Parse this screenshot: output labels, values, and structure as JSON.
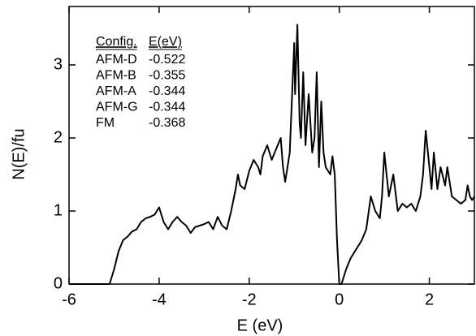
{
  "chart_data": {
    "type": "line",
    "xlabel": "E (eV)",
    "ylabel": "N(E)/fu",
    "x": [
      -6,
      -5.1,
      -5.0,
      -4.9,
      -4.8,
      -4.7,
      -4.6,
      -4.5,
      -4.4,
      -4.3,
      -4.2,
      -4.1,
      -4.0,
      -3.9,
      -3.8,
      -3.7,
      -3.6,
      -3.5,
      -3.4,
      -3.3,
      -3.2,
      -3.1,
      -3.0,
      -2.9,
      -2.8,
      -2.7,
      -2.6,
      -2.5,
      -2.4,
      -2.3,
      -2.25,
      -2.2,
      -2.1,
      -2.0,
      -1.9,
      -1.8,
      -1.75,
      -1.7,
      -1.6,
      -1.5,
      -1.4,
      -1.3,
      -1.25,
      -1.2,
      -1.1,
      -1.02,
      -1.0,
      -0.98,
      -0.93,
      -0.88,
      -0.85,
      -0.8,
      -0.75,
      -0.68,
      -0.6,
      -0.55,
      -0.5,
      -0.45,
      -0.4,
      -0.35,
      -0.3,
      -0.2,
      -0.15,
      -0.1,
      -0.05,
      0.0,
      0.05,
      0.15,
      0.25,
      0.4,
      0.5,
      0.6,
      0.7,
      0.8,
      0.9,
      0.95,
      1.0,
      1.05,
      1.1,
      1.2,
      1.3,
      1.4,
      1.5,
      1.6,
      1.7,
      1.8,
      1.86,
      1.92,
      2.0,
      2.05,
      2.1,
      2.18,
      2.25,
      2.35,
      2.4,
      2.5,
      2.6,
      2.7,
      2.8,
      2.85,
      2.9,
      2.95,
      3.0
    ],
    "values": [
      0,
      0,
      0.2,
      0.45,
      0.6,
      0.65,
      0.72,
      0.75,
      0.85,
      0.9,
      0.92,
      0.95,
      1.05,
      0.85,
      0.75,
      0.85,
      0.92,
      0.85,
      0.8,
      0.7,
      0.78,
      0.8,
      0.82,
      0.85,
      0.75,
      0.92,
      0.8,
      0.75,
      1.0,
      1.3,
      1.5,
      1.35,
      1.3,
      1.55,
      1.7,
      1.6,
      1.5,
      1.75,
      1.9,
      1.7,
      1.85,
      2.0,
      1.6,
      1.4,
      1.8,
      3.0,
      3.3,
      2.6,
      3.55,
      2.2,
      2.0,
      2.9,
      1.9,
      2.6,
      1.8,
      2.0,
      2.9,
      1.6,
      2.5,
      1.8,
      1.6,
      1.5,
      1.75,
      1.5,
      0.6,
      0.0,
      0.0,
      0.2,
      0.35,
      0.5,
      0.6,
      0.75,
      1.2,
      1.0,
      0.9,
      1.2,
      1.8,
      1.5,
      1.2,
      1.5,
      1.0,
      1.1,
      1.05,
      1.1,
      1.0,
      1.2,
      1.5,
      2.1,
      1.6,
      1.3,
      1.8,
      1.3,
      1.6,
      1.35,
      1.6,
      1.2,
      1.15,
      1.1,
      1.15,
      1.35,
      1.2,
      1.15,
      1.2
    ],
    "color": "#000000",
    "xlim": [
      -6,
      3
    ],
    "ylim": [
      0,
      3.8
    ],
    "xticks": [
      -6,
      -4,
      -2,
      0,
      2
    ],
    "yticks": [
      0,
      1,
      2,
      3
    ],
    "table": {
      "columns": [
        "Config.",
        "E(eV)"
      ],
      "rows": [
        [
          "AFM-D",
          "-0.522"
        ],
        [
          "AFM-B",
          "-0.355"
        ],
        [
          "AFM-A",
          "-0.344"
        ],
        [
          "AFM-G",
          "-0.344"
        ],
        [
          "FM",
          "-0.368"
        ]
      ]
    }
  }
}
